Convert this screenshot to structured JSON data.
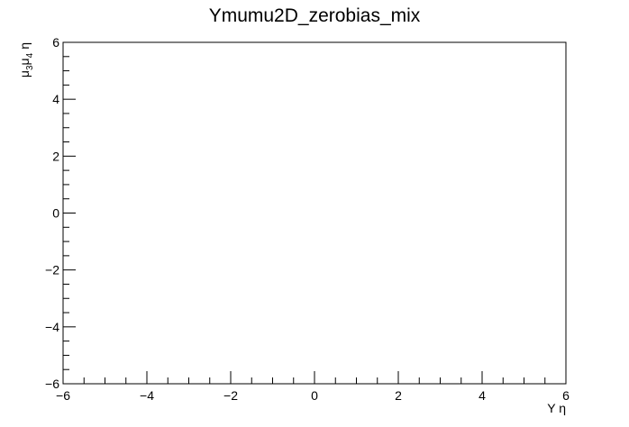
{
  "chart_data": {
    "type": "heatmap",
    "title": "Ymumu2D_zerobias_mix",
    "xlabel": "Υ η",
    "ylabel": "μ₃μ₄ η",
    "ylabel_parts": {
      "mu": "μ",
      "sub1": "3",
      "sub2": "4",
      "eta": "η"
    },
    "xlim": [
      -6,
      6
    ],
    "ylim": [
      -6,
      6
    ],
    "x_major_ticks": [
      -6,
      -4,
      -2,
      0,
      2,
      4,
      6
    ],
    "y_major_ticks": [
      -6,
      -4,
      -2,
      0,
      2,
      4,
      6
    ],
    "x_tick_labels": [
      "−6",
      "−4",
      "−2",
      "0",
      "2",
      "4",
      "6"
    ],
    "y_tick_labels": [
      "−6",
      "−4",
      "−2",
      "0",
      "2",
      "4",
      "6"
    ],
    "minor_per_major": 4,
    "grid": false,
    "bins": []
  }
}
